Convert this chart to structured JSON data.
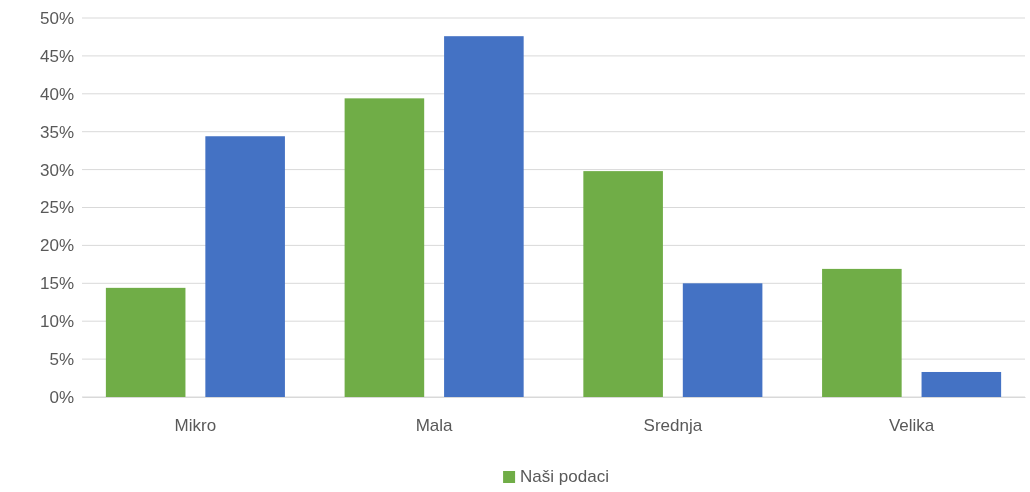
{
  "chart_data": {
    "type": "bar",
    "categories": [
      "Mikro",
      "Mala",
      "Srednja",
      "Velika"
    ],
    "series": [
      {
        "name": "Naši podaci",
        "color": "#70ad47",
        "values": [
          14.4,
          39.4,
          29.8,
          16.9
        ]
      },
      {
        "color": "#4472c4",
        "values": [
          34.4,
          47.6,
          15.0,
          3.3
        ]
      }
    ],
    "ylim": [
      0,
      50
    ],
    "yticks": [
      {
        "value": 0,
        "label": "0%"
      },
      {
        "value": 5,
        "label": "5%"
      },
      {
        "value": 10,
        "label": "10%"
      },
      {
        "value": 15,
        "label": "15%"
      },
      {
        "value": 20,
        "label": "20%"
      },
      {
        "value": 25,
        "label": "25%"
      },
      {
        "value": 30,
        "label": "30%"
      },
      {
        "value": 35,
        "label": "35%"
      },
      {
        "value": 40,
        "label": "40%"
      },
      {
        "value": 45,
        "label": "45%"
      },
      {
        "value": 50,
        "label": "50%"
      }
    ],
    "grid": "y",
    "legend": "bottom"
  }
}
